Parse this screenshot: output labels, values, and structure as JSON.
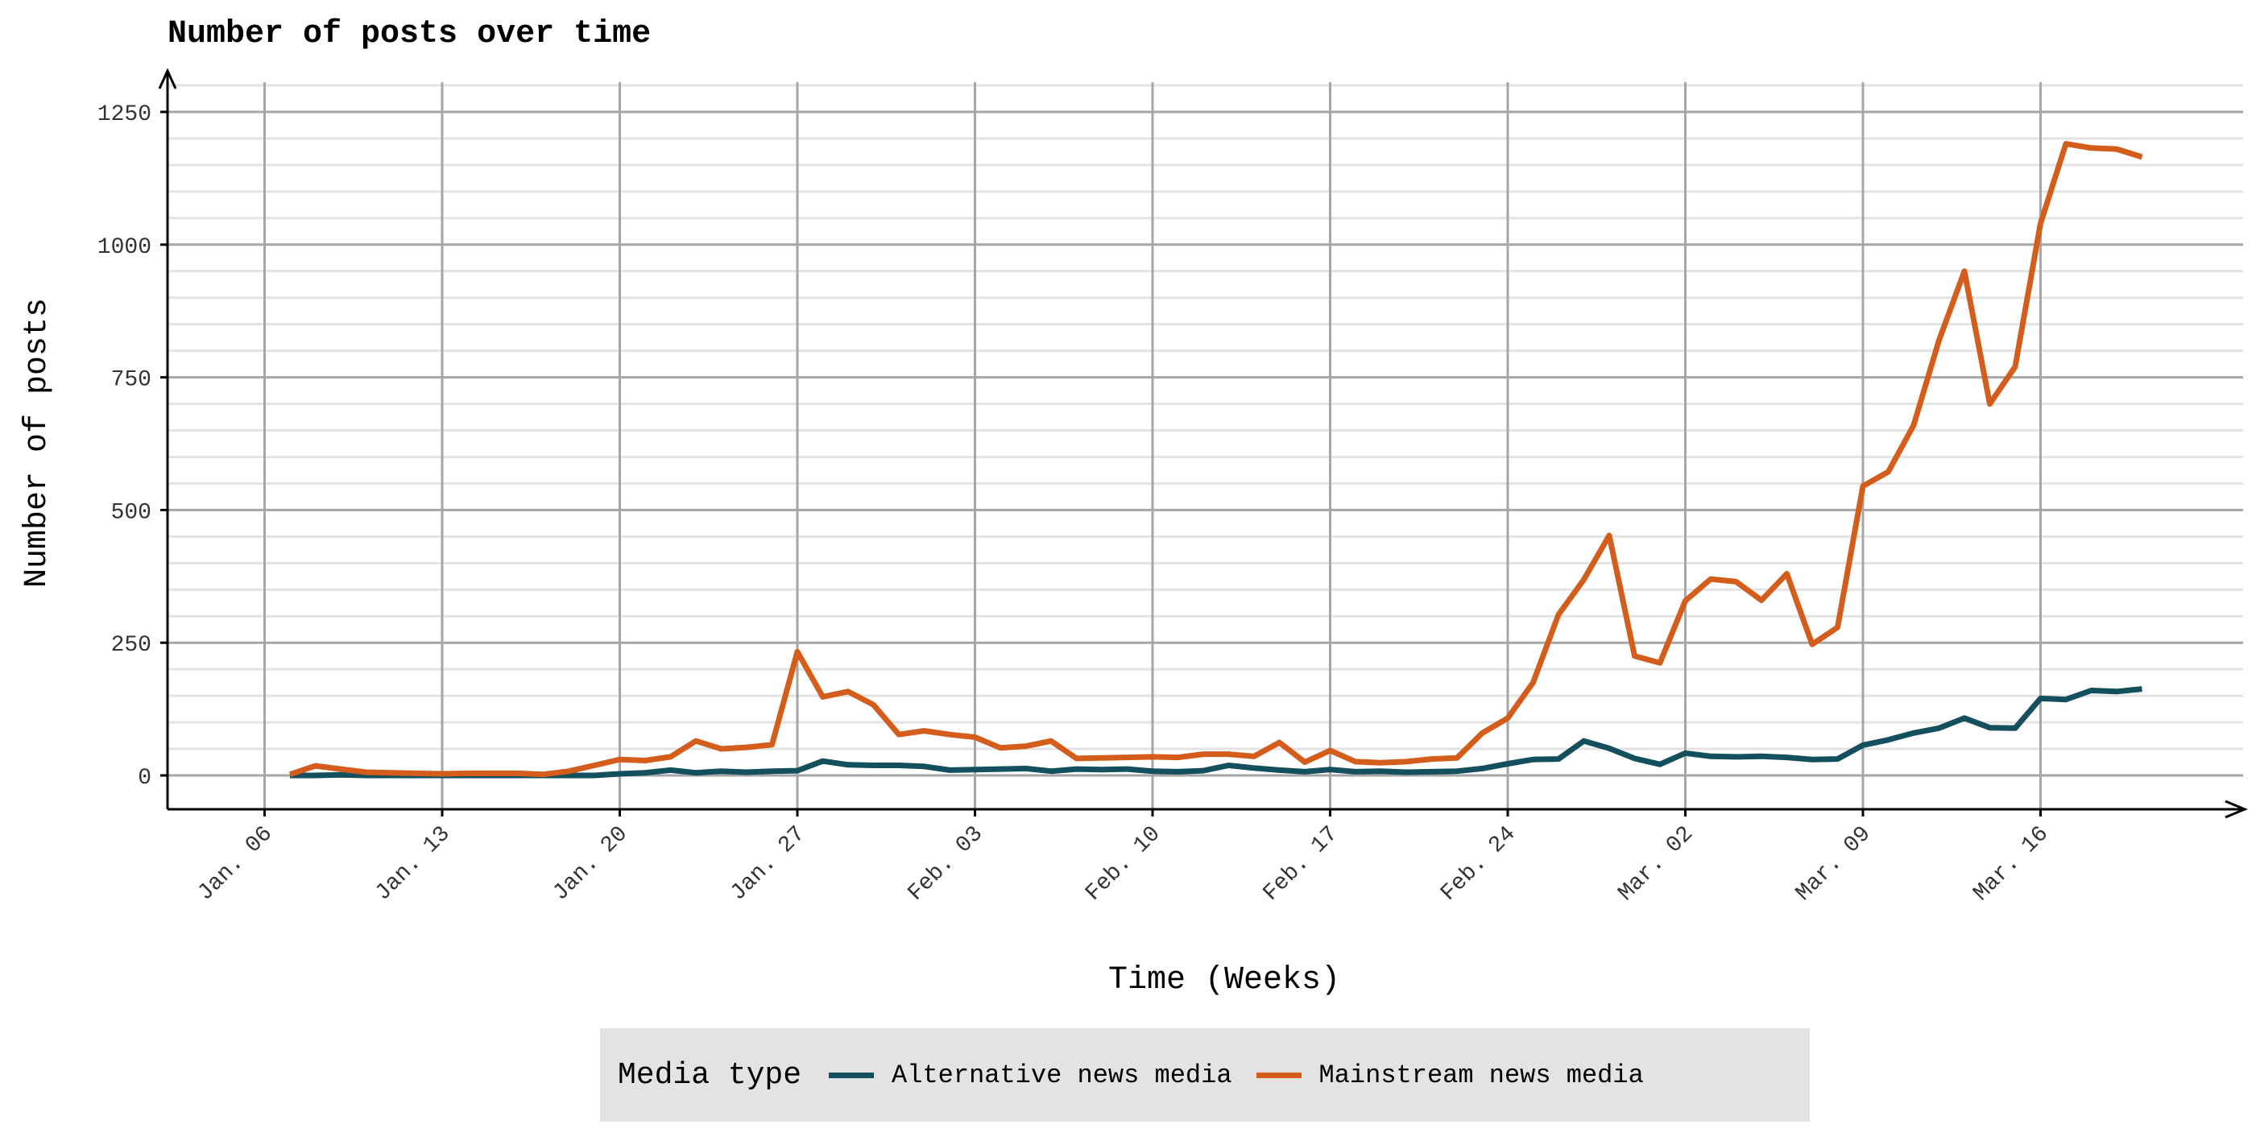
{
  "chart_data": {
    "type": "line",
    "title": "Number of posts over time",
    "xlabel": "Time (Weeks)",
    "ylabel": "Number of posts",
    "x_start": "2020-01-07",
    "x_step_days": 1,
    "x_ticks": [
      "Jan. 06",
      "Jan. 13",
      "Jan. 20",
      "Jan. 27",
      "Feb. 03",
      "Feb. 10",
      "Feb. 17",
      "Feb. 24",
      "Mar. 02",
      "Mar. 09",
      "Mar. 16"
    ],
    "y_ticks": [
      0,
      250,
      500,
      750,
      1000,
      1250
    ],
    "ylim": [
      -60,
      1300
    ],
    "grid": true,
    "legend": {
      "title": "Media type",
      "position": "bottom"
    },
    "series": [
      {
        "name": "Alternative news media",
        "color": "#134f5c",
        "values": [
          0,
          0,
          1,
          0,
          0,
          0,
          0,
          0,
          0,
          0,
          0,
          0,
          0,
          3,
          5,
          10,
          5,
          8,
          6,
          8,
          9,
          27,
          20,
          19,
          19,
          17,
          10,
          11,
          12,
          13,
          8,
          12,
          11,
          12,
          8,
          7,
          9,
          19,
          14,
          10,
          7,
          11,
          7,
          8,
          6,
          7,
          8,
          13,
          22,
          30,
          31,
          65,
          51,
          32,
          21,
          42,
          36,
          35,
          36,
          34,
          30,
          31,
          57,
          67,
          80,
          89,
          108,
          90,
          89,
          145,
          143,
          160,
          158,
          163
        ]
      },
      {
        "name": "Mainstream news media",
        "color": "#d45d1c",
        "values": [
          2,
          18,
          12,
          6,
          5,
          4,
          3,
          4,
          4,
          4,
          2,
          8,
          19,
          30,
          28,
          35,
          65,
          50,
          53,
          58,
          233,
          148,
          158,
          133,
          77,
          84,
          77,
          72,
          52,
          55,
          65,
          32,
          33,
          34,
          35,
          34,
          40,
          40,
          36,
          62,
          25,
          47,
          26,
          24,
          26,
          31,
          33,
          80,
          108,
          175,
          303,
          369,
          452,
          225,
          212,
          329,
          370,
          365,
          330,
          380,
          247,
          279,
          545,
          572,
          660,
          820,
          950,
          700,
          770,
          1040,
          1190,
          1182,
          1180,
          1165
        ]
      }
    ]
  }
}
